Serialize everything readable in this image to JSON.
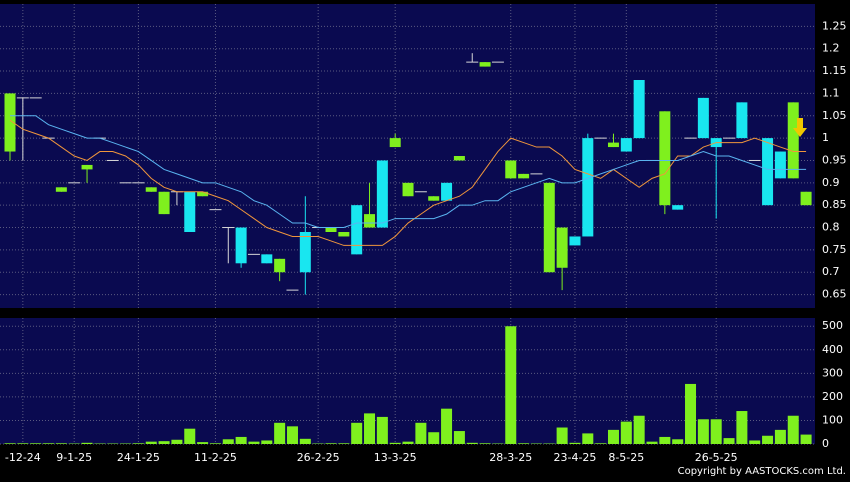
{
  "chart_data": {
    "type": "candlestick",
    "categories": [
      null,
      "-12-24",
      null,
      null,
      null,
      "9-1-25",
      null,
      null,
      null,
      null,
      "24-1-25",
      null,
      null,
      null,
      null,
      null,
      "11-2-25",
      null,
      null,
      null,
      null,
      null,
      null,
      null,
      "26-2-25",
      null,
      null,
      null,
      null,
      null,
      "13-3-25",
      null,
      null,
      null,
      null,
      null,
      null,
      null,
      null,
      "28-3-25",
      null,
      null,
      null,
      null,
      "23-4-25",
      null,
      null,
      null,
      "8-5-25",
      null,
      null,
      null,
      null,
      null,
      null,
      "26-5-25",
      null,
      null,
      null,
      null,
      null,
      null,
      null
    ],
    "open": [
      1.1,
      1.09,
      1.09,
      1.0,
      0.89,
      0.9,
      0.94,
      1.0,
      0.95,
      0.9,
      0.9,
      0.89,
      0.88,
      0.88,
      0.79,
      0.88,
      0.84,
      0.8,
      0.72,
      0.74,
      0.72,
      0.73,
      0.66,
      0.7,
      0.8,
      0.8,
      0.79,
      0.74,
      0.83,
      0.8,
      1.0,
      0.9,
      0.88,
      0.87,
      0.86,
      0.96,
      1.17,
      1.17,
      1.17,
      0.95,
      0.92,
      0.92,
      0.9,
      0.8,
      0.76,
      0.78,
      1.0,
      0.99,
      0.97,
      1.0,
      0.95,
      1.06,
      0.84,
      1.0,
      1.0,
      0.98,
      1.0,
      1.0,
      0.95,
      0.85,
      0.91,
      1.08,
      0.88
    ],
    "high": [
      1.1,
      1.09,
      1.09,
      1.0,
      0.89,
      0.9,
      0.94,
      1.0,
      0.95,
      0.9,
      0.9,
      0.89,
      0.88,
      0.88,
      0.88,
      0.88,
      0.84,
      0.8,
      0.8,
      0.74,
      0.74,
      0.73,
      0.66,
      0.87,
      0.8,
      0.8,
      0.79,
      0.85,
      0.9,
      0.95,
      1.01,
      0.9,
      0.88,
      0.87,
      0.9,
      0.96,
      1.19,
      1.17,
      1.17,
      0.95,
      0.92,
      0.92,
      0.9,
      0.8,
      0.78,
      1.01,
      1.0,
      1.01,
      1.0,
      1.13,
      0.95,
      1.06,
      0.85,
      1.0,
      1.09,
      1.0,
      1.0,
      1.08,
      0.95,
      1.0,
      0.97,
      1.08,
      0.88
    ],
    "low": [
      0.95,
      0.95,
      1.09,
      1.0,
      0.88,
      0.9,
      0.9,
      1.0,
      0.95,
      0.9,
      0.9,
      0.88,
      0.83,
      0.85,
      0.79,
      0.87,
      0.84,
      0.72,
      0.71,
      0.74,
      0.72,
      0.68,
      0.66,
      0.65,
      0.8,
      0.79,
      0.78,
      0.74,
      0.8,
      0.8,
      0.98,
      0.87,
      0.88,
      0.86,
      0.86,
      0.95,
      1.17,
      1.16,
      1.17,
      0.91,
      0.91,
      0.92,
      0.7,
      0.66,
      0.76,
      0.78,
      1.0,
      0.98,
      0.97,
      1.0,
      0.95,
      0.83,
      0.84,
      1.0,
      1.0,
      0.82,
      1.0,
      1.0,
      0.95,
      0.85,
      0.91,
      0.91,
      0.85
    ],
    "close": [
      0.97,
      1.09,
      1.09,
      1.0,
      0.88,
      0.9,
      0.93,
      1.0,
      0.95,
      0.9,
      0.9,
      0.88,
      0.83,
      0.88,
      0.88,
      0.87,
      0.84,
      0.8,
      0.8,
      0.74,
      0.74,
      0.7,
      0.66,
      0.79,
      0.8,
      0.79,
      0.78,
      0.85,
      0.8,
      0.95,
      0.98,
      0.87,
      0.88,
      0.86,
      0.9,
      0.95,
      1.17,
      1.16,
      1.17,
      0.91,
      0.91,
      0.92,
      0.7,
      0.71,
      0.78,
      1.0,
      1.0,
      0.98,
      1.0,
      1.13,
      0.95,
      0.85,
      0.85,
      1.0,
      1.09,
      1.0,
      1.0,
      1.08,
      0.95,
      1.0,
      0.97,
      0.91,
      0.85
    ],
    "up_color": "#19e6f0",
    "down_color": "#7ff01e",
    "flat_color": "#d8d8d8",
    "series": [
      {
        "color": "#f0963c",
        "values": [
          1.04,
          1.02,
          1.01,
          1.0,
          0.98,
          0.96,
          0.95,
          0.97,
          0.97,
          0.96,
          0.94,
          0.91,
          0.89,
          0.88,
          0.88,
          0.88,
          0.87,
          0.86,
          0.84,
          0.82,
          0.8,
          0.79,
          0.78,
          0.78,
          0.78,
          0.77,
          0.76,
          0.76,
          0.76,
          0.76,
          0.78,
          0.81,
          0.83,
          0.85,
          0.86,
          0.87,
          0.89,
          0.93,
          0.97,
          1.0,
          0.99,
          0.98,
          0.98,
          0.96,
          0.93,
          0.92,
          0.91,
          0.93,
          0.91,
          0.89,
          0.91,
          0.92,
          0.96,
          0.96,
          0.98,
          0.99,
          0.99,
          0.99,
          1.0,
          0.99,
          0.98,
          0.97,
          0.97
        ]
      },
      {
        "color": "#5ab4f0",
        "values": [
          1.05,
          1.05,
          1.05,
          1.03,
          1.02,
          1.01,
          1.0,
          1.0,
          0.99,
          0.98,
          0.97,
          0.95,
          0.93,
          0.92,
          0.91,
          0.9,
          0.9,
          0.89,
          0.88,
          0.86,
          0.85,
          0.83,
          0.81,
          0.81,
          0.8,
          0.8,
          0.8,
          0.81,
          0.81,
          0.81,
          0.82,
          0.82,
          0.82,
          0.82,
          0.83,
          0.85,
          0.85,
          0.86,
          0.86,
          0.88,
          0.89,
          0.9,
          0.91,
          0.9,
          0.9,
          0.91,
          0.92,
          0.93,
          0.94,
          0.95,
          0.95,
          0.95,
          0.95,
          0.96,
          0.97,
          0.96,
          0.96,
          0.95,
          0.94,
          0.93,
          0.93,
          0.93,
          0.93
        ]
      }
    ],
    "ylim": [
      0.62,
      1.3
    ],
    "yticks": [
      0.65,
      0.7,
      0.75,
      0.8,
      0.85,
      0.9,
      0.95,
      1,
      1.05,
      1.1,
      1.15,
      1.2,
      1.25
    ],
    "volume": {
      "color": "#7ff01e",
      "values": [
        3,
        3,
        3,
        3,
        3,
        2,
        5,
        2,
        2,
        2,
        3,
        10,
        12,
        18,
        65,
        8,
        3,
        20,
        30,
        10,
        15,
        90,
        75,
        22,
        2,
        3,
        3,
        90,
        130,
        115,
        5,
        10,
        90,
        50,
        150,
        55,
        5,
        3,
        2,
        500,
        3,
        2,
        2,
        70,
        5,
        45,
        3,
        60,
        95,
        120,
        10,
        30,
        20,
        255,
        105,
        105,
        25,
        140,
        15,
        35,
        60,
        120,
        40
      ],
      "ylim": [
        0,
        535
      ],
      "yticks": [
        0,
        100,
        200,
        300,
        400,
        500
      ]
    },
    "grid": true,
    "copyright": "Copyright by AASTOCKS.com Ltd."
  }
}
